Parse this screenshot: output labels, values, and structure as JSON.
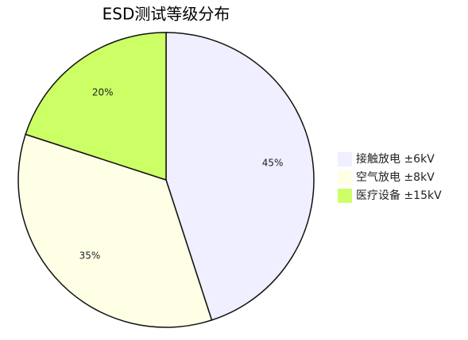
{
  "chart_data": {
    "type": "pie",
    "title": "ESD测试等级分布",
    "categories": [
      "接触放电 ±6kV",
      "空气放电 ±8kV",
      "医疗设备 ±15kV"
    ],
    "values": [
      45,
      35,
      20
    ],
    "value_labels": [
      "45%",
      "35%",
      "20%"
    ],
    "colors": [
      "#efefff",
      "#ffffe6",
      "#ccff66"
    ],
    "legend": "right"
  }
}
